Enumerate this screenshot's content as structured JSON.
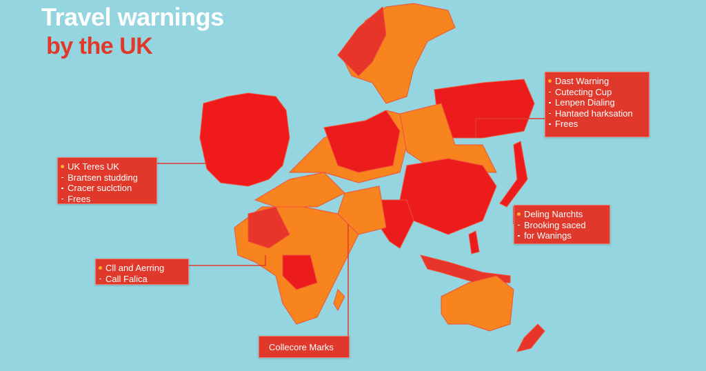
{
  "title": {
    "line1": "Travel warnings",
    "line2": "by the UK"
  },
  "callouts": [
    {
      "heading": "UK Teres UK",
      "items": [
        "Brartsen studding",
        "Cracer suclction",
        "Frees"
      ]
    },
    {
      "heading": "Dast Warning",
      "items": [
        "Cutecting Cup",
        "Lenpen Dialing",
        "Hantaed harksation",
        "Frees"
      ]
    },
    {
      "heading": "Deling Narchts",
      "items": [
        "Brooking saced",
        "for Wanings"
      ]
    },
    {
      "heading": "Cll and Aerring",
      "items": [
        "Call Falica"
      ]
    },
    {
      "heading": "Collecore Marks",
      "items": []
    }
  ]
}
